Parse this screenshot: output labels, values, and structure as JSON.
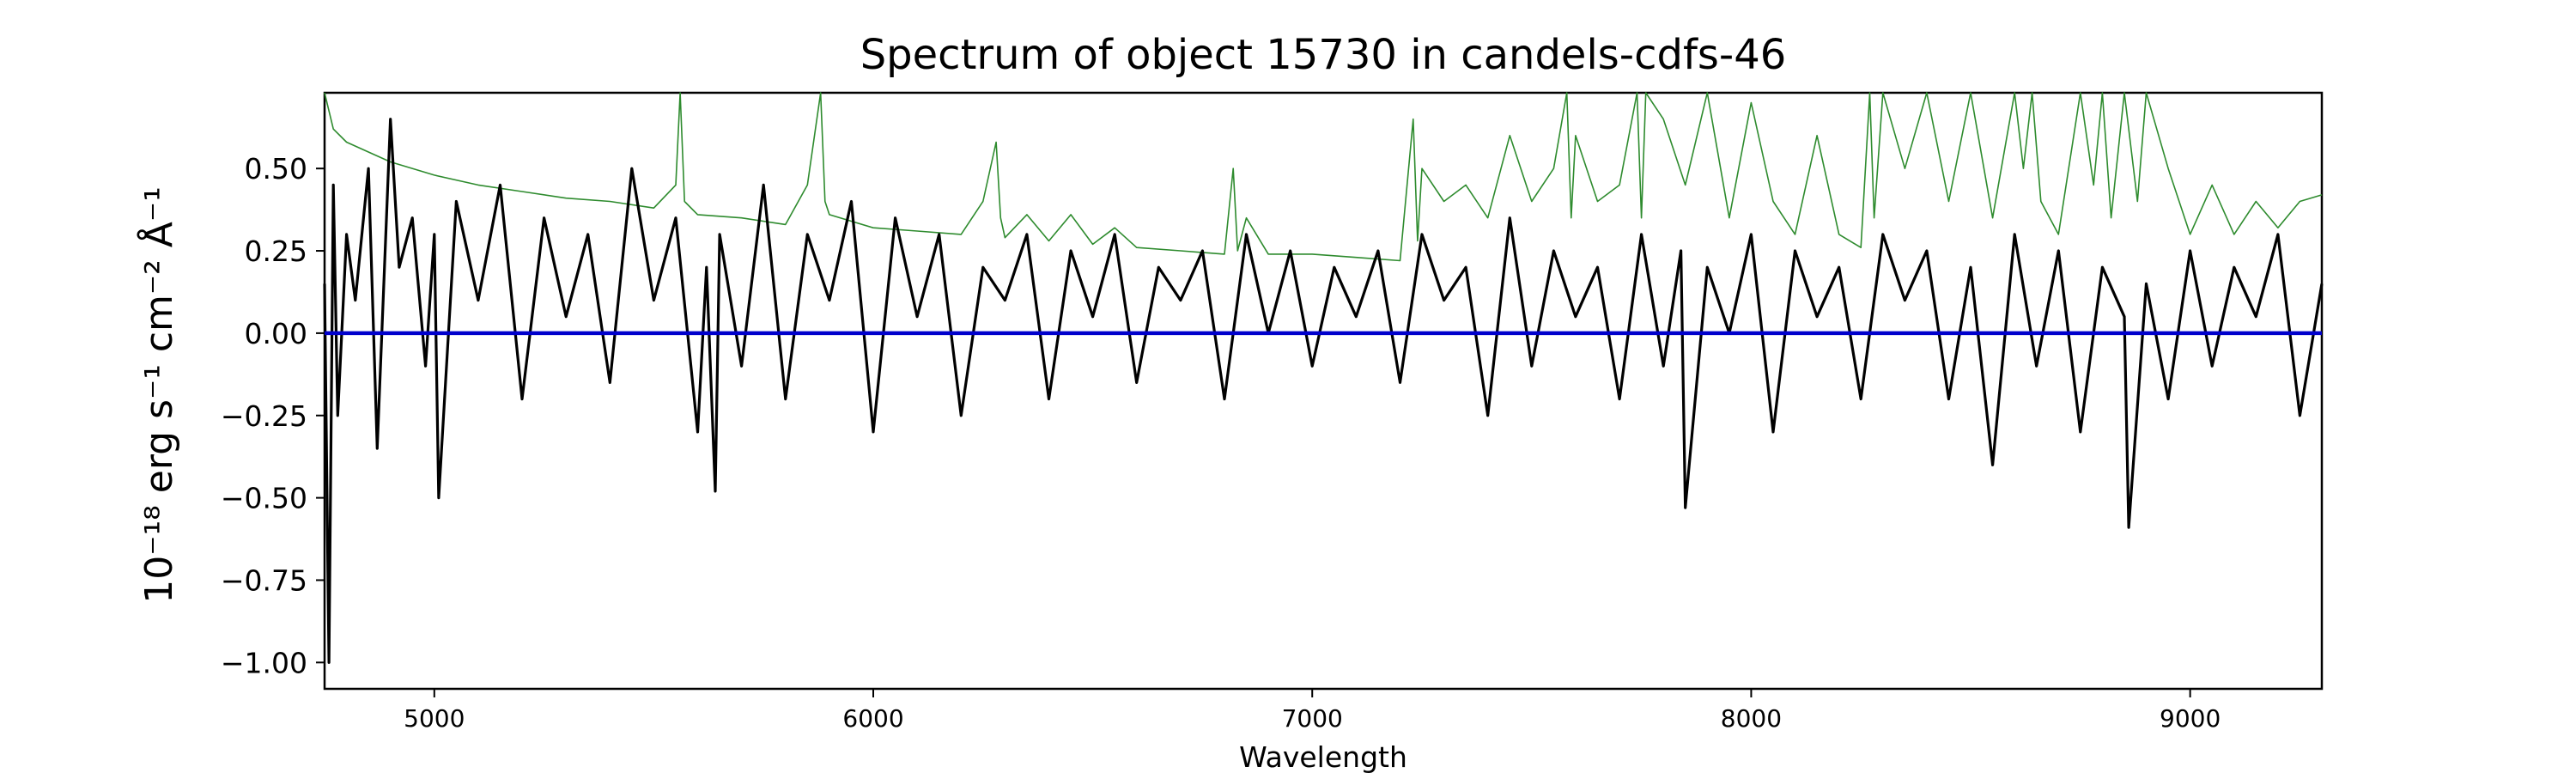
{
  "chart_data": {
    "type": "line",
    "title": "Spectrum of object 15730 in candels-cdfs-46",
    "xlabel": "Wavelength",
    "ylabel": "10⁻¹⁸ erg s⁻¹ cm⁻² Å⁻¹",
    "xlim": [
      4750,
      9300
    ],
    "ylim": [
      -1.08,
      0.73
    ],
    "x_ticks": [
      5000,
      6000,
      7000,
      8000,
      9000
    ],
    "y_ticks": [
      -1.0,
      -0.75,
      -0.5,
      -0.25,
      0.0,
      0.25,
      0.5
    ],
    "y_tick_labels": [
      "−1.00",
      "−0.75",
      "−0.50",
      "−0.25",
      "0.00",
      "0.25",
      "0.50"
    ],
    "grid": false,
    "series": [
      {
        "role": "flux",
        "color": "#000000",
        "x": [
          4750,
          4760,
          4770,
          4780,
          4800,
          4820,
          4850,
          4870,
          4900,
          4920,
          4950,
          4980,
          5000,
          5010,
          5050,
          5100,
          5150,
          5200,
          5250,
          5300,
          5350,
          5400,
          5450,
          5500,
          5550,
          5600,
          5620,
          5640,
          5650,
          5700,
          5750,
          5800,
          5850,
          5900,
          5950,
          6000,
          6050,
          6100,
          6150,
          6200,
          6250,
          6300,
          6350,
          6400,
          6450,
          6500,
          6550,
          6600,
          6650,
          6700,
          6750,
          6800,
          6850,
          6900,
          6950,
          7000,
          7050,
          7100,
          7150,
          7200,
          7250,
          7300,
          7350,
          7400,
          7450,
          7500,
          7550,
          7600,
          7650,
          7700,
          7750,
          7800,
          7840,
          7850,
          7900,
          7950,
          8000,
          8050,
          8100,
          8150,
          8200,
          8250,
          8300,
          8350,
          8400,
          8450,
          8500,
          8550,
          8600,
          8650,
          8700,
          8750,
          8800,
          8850,
          8860,
          8900,
          8950,
          9000,
          9050,
          9100,
          9150,
          9200,
          9250,
          9300
        ],
        "y": [
          0.15,
          -1.0,
          0.45,
          -0.25,
          0.3,
          0.1,
          0.5,
          -0.35,
          0.65,
          0.2,
          0.35,
          -0.1,
          0.3,
          -0.5,
          0.4,
          0.1,
          0.45,
          -0.2,
          0.35,
          0.05,
          0.3,
          -0.15,
          0.5,
          0.1,
          0.35,
          -0.3,
          0.2,
          -0.48,
          0.3,
          -0.1,
          0.45,
          -0.2,
          0.3,
          0.1,
          0.4,
          -0.3,
          0.35,
          0.05,
          0.3,
          -0.25,
          0.2,
          0.1,
          0.3,
          -0.2,
          0.25,
          0.05,
          0.3,
          -0.15,
          0.2,
          0.1,
          0.25,
          -0.2,
          0.3,
          0.0,
          0.25,
          -0.1,
          0.2,
          0.05,
          0.25,
          -0.15,
          0.3,
          0.1,
          0.2,
          -0.25,
          0.35,
          -0.1,
          0.25,
          0.05,
          0.2,
          -0.2,
          0.3,
          -0.1,
          0.25,
          -0.53,
          0.2,
          0.0,
          0.3,
          -0.3,
          0.25,
          0.05,
          0.2,
          -0.2,
          0.3,
          0.1,
          0.25,
          -0.2,
          0.2,
          -0.4,
          0.3,
          -0.1,
          0.25,
          -0.3,
          0.2,
          0.05,
          -0.59,
          0.15,
          -0.2,
          0.25,
          -0.1,
          0.2,
          0.05,
          0.3,
          -0.25,
          0.15
        ]
      },
      {
        "role": "zero",
        "color": "#0000cc",
        "x": [
          4750,
          9300
        ],
        "y": [
          0.0,
          0.0
        ]
      },
      {
        "role": "noise",
        "color": "#2e8b2e",
        "x": [
          4750,
          4770,
          4800,
          4850,
          4900,
          5000,
          5100,
          5200,
          5300,
          5400,
          5500,
          5550,
          5560,
          5570,
          5600,
          5700,
          5800,
          5850,
          5880,
          5890,
          5900,
          6000,
          6100,
          6200,
          6250,
          6280,
          6290,
          6300,
          6350,
          6400,
          6450,
          6500,
          6550,
          6600,
          6700,
          6800,
          6820,
          6830,
          6850,
          6900,
          7000,
          7100,
          7200,
          7230,
          7240,
          7250,
          7300,
          7350,
          7400,
          7450,
          7500,
          7550,
          7580,
          7590,
          7600,
          7650,
          7700,
          7740,
          7750,
          7760,
          7800,
          7850,
          7900,
          7950,
          8000,
          8050,
          8100,
          8150,
          8200,
          8250,
          8270,
          8280,
          8300,
          8350,
          8400,
          8450,
          8500,
          8550,
          8600,
          8620,
          8640,
          8660,
          8700,
          8750,
          8780,
          8800,
          8820,
          8850,
          8880,
          8900,
          8950,
          9000,
          9050,
          9100,
          9150,
          9200,
          9250,
          9300
        ],
        "y": [
          0.73,
          0.62,
          0.58,
          0.55,
          0.52,
          0.48,
          0.45,
          0.43,
          0.41,
          0.4,
          0.38,
          0.45,
          0.73,
          0.4,
          0.36,
          0.35,
          0.33,
          0.45,
          0.73,
          0.4,
          0.36,
          0.32,
          0.31,
          0.3,
          0.4,
          0.58,
          0.35,
          0.29,
          0.36,
          0.28,
          0.36,
          0.27,
          0.32,
          0.26,
          0.25,
          0.24,
          0.5,
          0.25,
          0.35,
          0.24,
          0.24,
          0.23,
          0.22,
          0.65,
          0.28,
          0.5,
          0.4,
          0.45,
          0.35,
          0.6,
          0.4,
          0.5,
          0.73,
          0.35,
          0.6,
          0.4,
          0.45,
          0.73,
          0.35,
          0.73,
          0.65,
          0.45,
          0.73,
          0.35,
          0.7,
          0.4,
          0.3,
          0.6,
          0.3,
          0.26,
          0.73,
          0.35,
          0.73,
          0.5,
          0.73,
          0.4,
          0.73,
          0.35,
          0.73,
          0.5,
          0.73,
          0.4,
          0.3,
          0.73,
          0.45,
          0.73,
          0.35,
          0.73,
          0.4,
          0.73,
          0.5,
          0.3,
          0.45,
          0.3,
          0.4,
          0.32,
          0.4,
          0.42
        ]
      }
    ]
  }
}
